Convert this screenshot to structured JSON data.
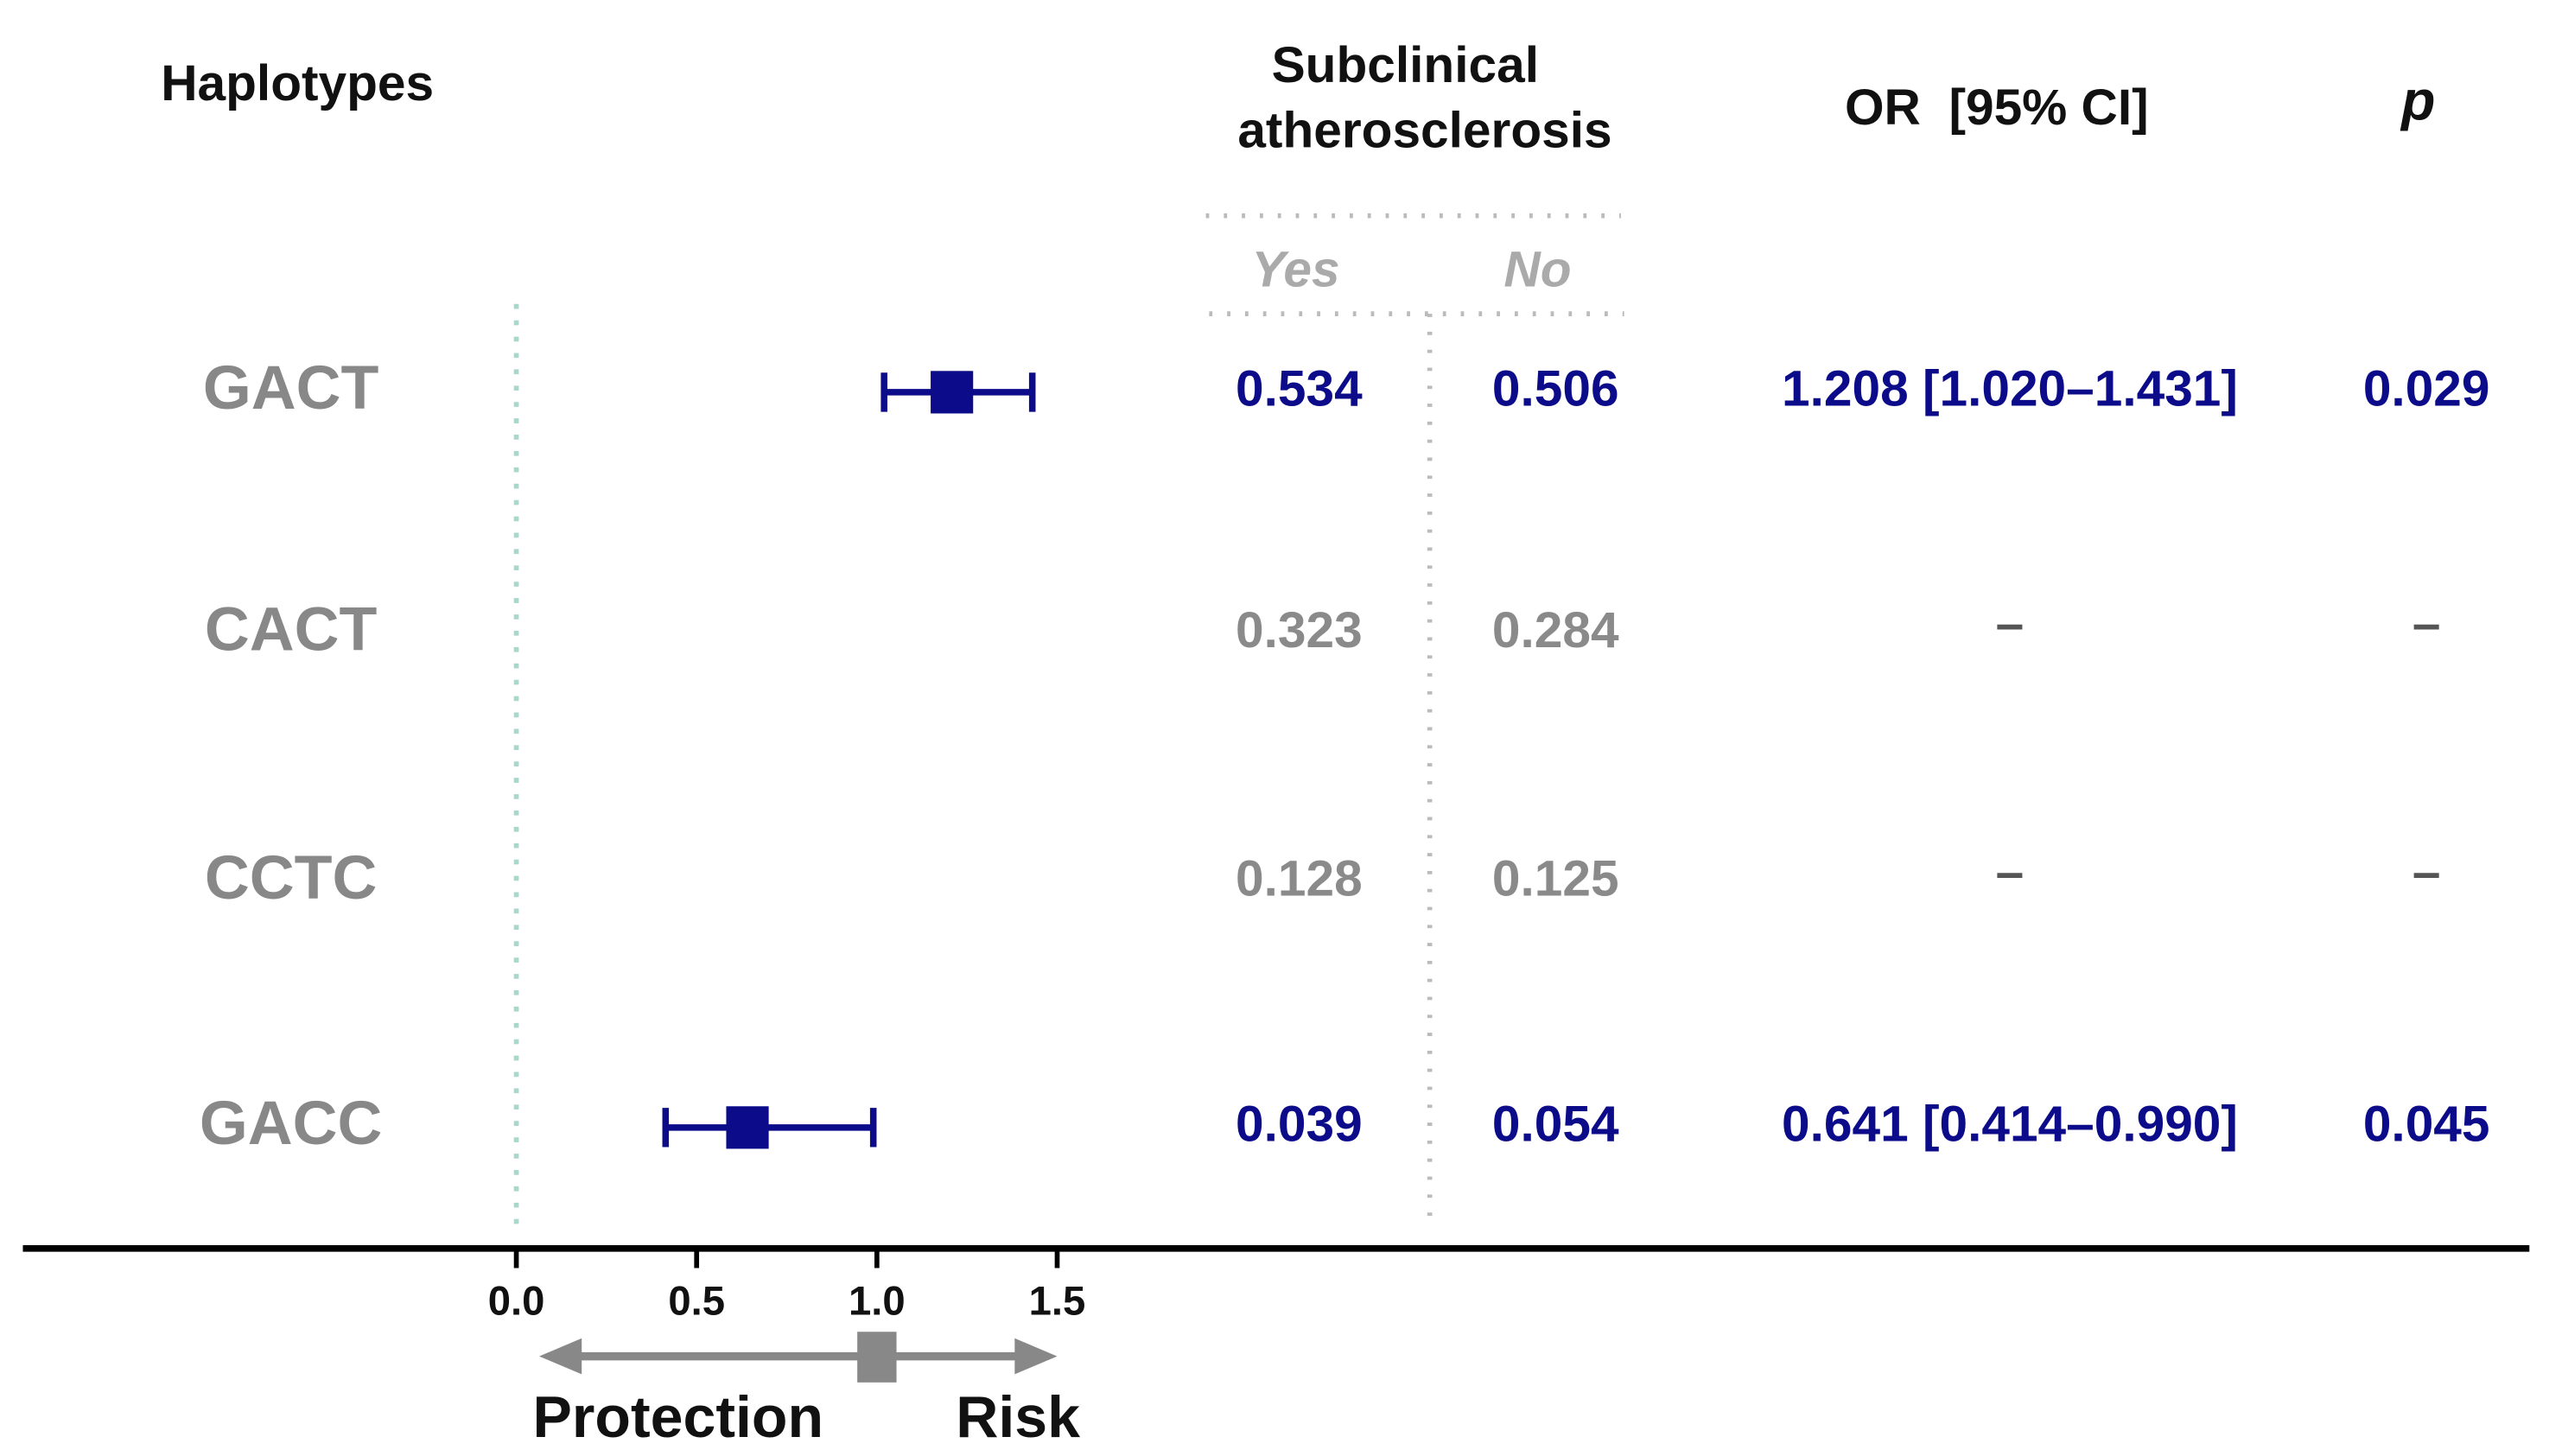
{
  "chart_data": {
    "type": "forest",
    "headers": {
      "haplotypes": "Haplotypes",
      "outcome": [
        "Subclinical",
        "atherosclerosis"
      ],
      "yes": "Yes",
      "no": "No",
      "or": "OR  [95% CI]",
      "p": "p"
    },
    "categories": [
      "GACT",
      "CACT",
      "CCTC",
      "GACC"
    ],
    "yes": [
      0.534,
      0.323,
      0.128,
      0.039
    ],
    "no": [
      0.506,
      0.284,
      0.125,
      0.054
    ],
    "values": [
      1.208,
      null,
      null,
      0.641
    ],
    "lower": [
      1.02,
      null,
      null,
      0.414
    ],
    "upper": [
      1.431,
      null,
      null,
      0.99
    ],
    "value_labels": [
      "1.208 [1.020–1.431]",
      "–",
      "–",
      "0.641 [0.414–0.990]"
    ],
    "p_labels": [
      "0.029",
      "–",
      "–",
      "0.045"
    ],
    "highlight": [
      true,
      false,
      false,
      true
    ],
    "color": "#0c0c8a",
    "muted_color": "#8a8a8a",
    "xlim": [
      0,
      1.5
    ],
    "xticks": [
      {
        "value": 0,
        "label": "0.0"
      },
      {
        "value": 0.5,
        "label": "0.5"
      },
      {
        "value": 1,
        "label": "1.0"
      },
      {
        "value": 1.5,
        "label": "1.5"
      }
    ],
    "reference": 1,
    "arrow_labels": [
      "Protection",
      "Risk"
    ]
  }
}
